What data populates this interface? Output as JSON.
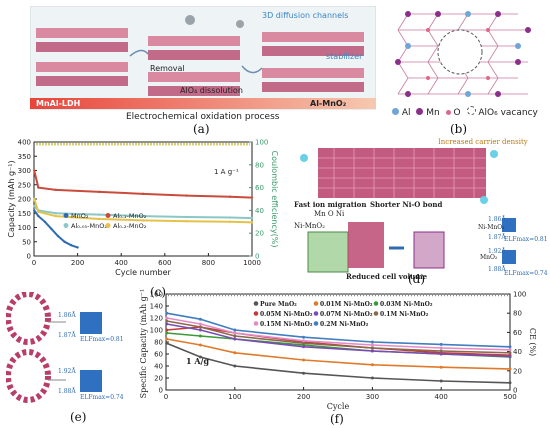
{
  "panel_a": {
    "label": "(a)",
    "channels_text": "3D diffusion channels",
    "stabilizer_text": "stabilizer",
    "removal_text": "Removal",
    "dissolution_text": "AlO₄ dissolution",
    "left_material": "MnAl-LDH",
    "right_material": "Al-MnO₂",
    "process_text": "Electrochemical oxidation process"
  },
  "panel_b": {
    "label": "(b)",
    "legend": [
      "Al",
      "Mn",
      "O",
      "AlO₆ vacancy"
    ],
    "colors": {
      "al": "#6fa6d6",
      "mn": "#8b2f8b",
      "o": "#e0668a"
    }
  },
  "panel_c": {
    "label": "(c)",
    "rate_text": "1 A g⁻¹",
    "legend": [
      "MnO₂",
      "Al₀.₀₅-MnO₂",
      "Al₀.₁-MnO₂",
      "Al₀.₂-MnO₂"
    ]
  },
  "panel_d": {
    "label": "(d)",
    "title": "Increased carrier density",
    "fast_ion": "Fast ion migration",
    "shorter_bond": "Shorter Ni-O bond",
    "atoms": "Mn  O  Ni",
    "ni_mno2": "Ni-MnO₂",
    "mno2": "MnO₂",
    "reduced_volume": "Reduced cell volume",
    "bond1": "1.86Å",
    "bond2": "1.87Å",
    "bond3": "1.92Å",
    "bond4": "1.88Å",
    "elf1": "ELFmax=0.81",
    "elf2": "ELFmax=0.74"
  },
  "panel_e": {
    "label": "(e)",
    "bond1": "1.86Å",
    "bond2": "1.87Å",
    "bond3": "1.92Å",
    "bond4": "1.88Å",
    "elf1": "ELFmax=0.81",
    "elf2": "ELFmax=0.74"
  },
  "panel_f": {
    "label": "(f)",
    "rate_text": "1 A/g",
    "legend": [
      "Pure MnO₂",
      "0.01M Ni-MnO₂",
      "0.03M Ni-MnO₂",
      "0.05M Ni-MnO₂",
      "0.07M Ni-MnO₂",
      "0.1M Ni-MnO₂",
      "0.15M Ni-MnO₂",
      "0.2M Ni-MnO₂"
    ]
  },
  "chart_data": [
    {
      "type": "line",
      "panel": "c",
      "xlabel": "Cycle number",
      "ylabel": "Capacity (mAh g⁻¹)",
      "y2label": "Coulombic efficiency(%)",
      "xlim": [
        0,
        1000
      ],
      "ylim": [
        0,
        400
      ],
      "y2lim": [
        0,
        100
      ],
      "xticks": [
        0,
        200,
        400,
        600,
        800,
        1000
      ],
      "yticks": [
        0,
        50,
        100,
        150,
        200,
        250,
        300,
        350,
        400
      ],
      "y2ticks": [
        0,
        20,
        40,
        60,
        80,
        100
      ],
      "series": [
        {
          "name": "MnO₂",
          "color": "#2f6bb3",
          "x": [
            1,
            20,
            50,
            80,
            110,
            140,
            170,
            200
          ],
          "y": [
            160,
            140,
            120,
            95,
            70,
            50,
            38,
            30
          ]
        },
        {
          "name": "Al₀.₀₅-MnO₂",
          "color": "#8bc7c7",
          "x": [
            1,
            20,
            100,
            300,
            500,
            700,
            900,
            1000
          ],
          "y": [
            175,
            160,
            150,
            145,
            140,
            137,
            135,
            133
          ]
        },
        {
          "name": "Al₀.₁-MnO₂",
          "color": "#c94b3c",
          "x": [
            1,
            20,
            100,
            300,
            500,
            700,
            900,
            1000
          ],
          "y": [
            300,
            240,
            232,
            225,
            218,
            212,
            208,
            205
          ]
        },
        {
          "name": "Al₀.₂-MnO₂",
          "color": "#e5c24a",
          "x": [
            1,
            20,
            100,
            300,
            500,
            700,
            900,
            1000
          ],
          "y": [
            200,
            155,
            140,
            130,
            125,
            122,
            120,
            118
          ]
        }
      ],
      "ce_value": 98
    },
    {
      "type": "scatter",
      "panel": "f",
      "xlabel": "Cycle",
      "ylabel": "Specific Capacity (mAh g⁻¹)",
      "y2label": "CE (%)",
      "xlim": [
        0,
        500
      ],
      "ylim": [
        0,
        160
      ],
      "y2lim": [
        0,
        100
      ],
      "xticks": [
        0,
        100,
        200,
        300,
        400,
        500
      ],
      "yticks": [
        0,
        20,
        40,
        60,
        80,
        100,
        120,
        140,
        160
      ],
      "y2ticks": [
        0,
        20,
        40,
        60,
        80,
        100
      ],
      "series": [
        {
          "name": "Pure MnO₂",
          "color": "#555555",
          "x": [
            1,
            50,
            100,
            200,
            300,
            400,
            500
          ],
          "y": [
            78,
            55,
            40,
            28,
            20,
            15,
            12
          ]
        },
        {
          "name": "0.01M Ni-MnO₂",
          "color": "#e07a2a",
          "x": [
            1,
            50,
            100,
            200,
            300,
            400,
            500
          ],
          "y": [
            85,
            75,
            62,
            50,
            42,
            38,
            35
          ]
        },
        {
          "name": "0.03M Ni-MnO₂",
          "color": "#3a9a3a",
          "x": [
            1,
            50,
            100,
            200,
            300,
            400,
            500
          ],
          "y": [
            95,
            90,
            85,
            75,
            65,
            60,
            55
          ]
        },
        {
          "name": "0.05M Ni-MnO₂",
          "color": "#c23a3a",
          "x": [
            1,
            50,
            100,
            200,
            300,
            400,
            500
          ],
          "y": [
            100,
            105,
            95,
            80,
            70,
            62,
            58
          ]
        },
        {
          "name": "0.07M Ni-MnO₂",
          "color": "#7a4bb5",
          "x": [
            1,
            50,
            100,
            200,
            300,
            400,
            500
          ],
          "y": [
            110,
            100,
            85,
            72,
            65,
            60,
            56
          ]
        },
        {
          "name": "0.1M Ni-MnO₂",
          "color": "#8a6a4a",
          "x": [
            1,
            50,
            100,
            200,
            300,
            400,
            500
          ],
          "y": [
            115,
            105,
            90,
            78,
            70,
            65,
            62
          ]
        },
        {
          "name": "0.15M Ni-MnO₂",
          "color": "#e58ac7",
          "x": [
            1,
            50,
            100,
            200,
            300,
            400,
            500
          ],
          "y": [
            120,
            110,
            95,
            82,
            75,
            70,
            67
          ]
        },
        {
          "name": "0.2M Ni-MnO₂",
          "color": "#3f7fc0",
          "x": [
            1,
            50,
            100,
            200,
            300,
            400,
            500
          ],
          "y": [
            128,
            118,
            100,
            88,
            80,
            76,
            72
          ]
        }
      ],
      "ce_value": 99
    }
  ]
}
